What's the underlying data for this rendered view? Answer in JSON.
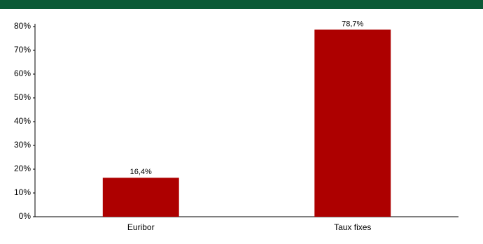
{
  "chart_data": {
    "type": "bar",
    "categories": [
      "Euribor",
      "Taux fixes"
    ],
    "values": [
      16.4,
      78.7
    ],
    "value_labels": [
      "16,4%",
      "78,7%"
    ],
    "color": "#ad0000",
    "ylim": [
      0,
      80
    ],
    "yticks": [
      {
        "value": 0,
        "label": "0%"
      },
      {
        "value": 10,
        "label": "10%"
      },
      {
        "value": 20,
        "label": "20%"
      },
      {
        "value": 30,
        "label": "30%"
      },
      {
        "value": 40,
        "label": "40%"
      },
      {
        "value": 50,
        "label": "50%"
      },
      {
        "value": 60,
        "label": "60%"
      },
      {
        "value": 70,
        "label": "70%"
      },
      {
        "value": 80,
        "label": "80%"
      }
    ],
    "grid": false
  }
}
